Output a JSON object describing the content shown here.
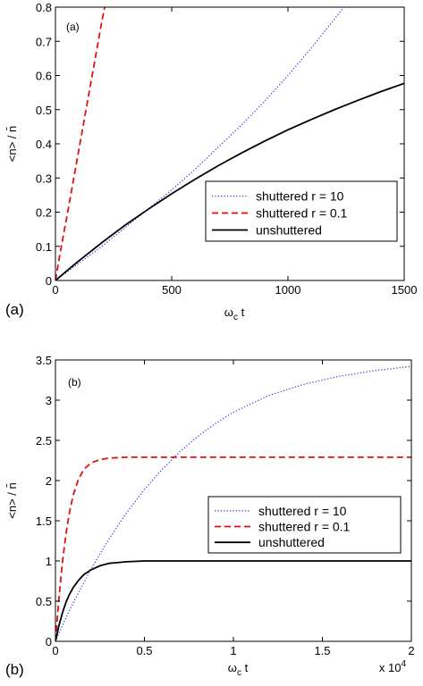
{
  "chart_data": [
    {
      "type": "line",
      "panel_label": "(a)",
      "inner_label": "(a)",
      "xlabel_main": "ω",
      "xlabel_sub": "c",
      "xlabel_tail": " t",
      "ylabel": "<n> / n̄",
      "xlim": [
        0,
        1500
      ],
      "ylim": [
        0,
        0.8
      ],
      "xticks": [
        0,
        500,
        1000,
        1500
      ],
      "xtick_labels": [
        "0",
        "500",
        "1000",
        "1500"
      ],
      "yticks": [
        0,
        0.1,
        0.2,
        0.3,
        0.4,
        0.5,
        0.6,
        0.7,
        0.8
      ],
      "ytick_labels": [
        "0",
        "0.1",
        "0.2",
        "0.3",
        "0.4",
        "0.5",
        "0.6",
        "0.7",
        "0.8"
      ],
      "x_multiplier": "",
      "grid": false,
      "legend_position": "lower-right",
      "series": [
        {
          "name": "shuttered r = 10",
          "color": "#3b3bd6",
          "dash": "dotted",
          "x": [
            0,
            100,
            200,
            300,
            400,
            500,
            600,
            700,
            800,
            900,
            1000,
            1100,
            1200,
            1240
          ],
          "y": [
            0,
            0.05,
            0.1,
            0.155,
            0.21,
            0.265,
            0.325,
            0.39,
            0.455,
            0.525,
            0.6,
            0.68,
            0.765,
            0.8
          ]
        },
        {
          "name": "shuttered r = 0.1",
          "color": "#e01010",
          "dash": "dashed",
          "x": [
            0,
            20,
            50,
            100,
            150,
            200,
            212
          ],
          "y": [
            0,
            0.08,
            0.19,
            0.38,
            0.57,
            0.76,
            0.8
          ]
        },
        {
          "name": "unshuttered",
          "color": "#000000",
          "dash": "solid",
          "x": [
            0,
            50,
            100,
            200,
            300,
            400,
            500,
            600,
            700,
            800,
            900,
            1000,
            1100,
            1200,
            1300,
            1400,
            1500
          ],
          "y": [
            0,
            0.029,
            0.057,
            0.111,
            0.162,
            0.209,
            0.254,
            0.296,
            0.336,
            0.373,
            0.408,
            0.441,
            0.471,
            0.5,
            0.527,
            0.553,
            0.577
          ]
        }
      ]
    },
    {
      "type": "line",
      "panel_label": "(b)",
      "inner_label": "(b)",
      "xlabel_main": "ω",
      "xlabel_sub": "c",
      "xlabel_tail": " t",
      "ylabel": "<n> / n̄",
      "xlim": [
        0,
        2
      ],
      "ylim": [
        0,
        3.5
      ],
      "xticks": [
        0,
        0.5,
        1,
        1.5,
        2
      ],
      "xtick_labels": [
        "0",
        "0.5",
        "1",
        "1.5",
        "2"
      ],
      "yticks": [
        0,
        0.5,
        1,
        1.5,
        2,
        2.5,
        3,
        3.5
      ],
      "ytick_labels": [
        "0",
        "0.5",
        "1",
        "1.5",
        "2",
        "2.5",
        "3",
        "3.5"
      ],
      "x_multiplier": "x 10",
      "x_multiplier_exp": "4",
      "grid": false,
      "legend_position": "right",
      "series": [
        {
          "name": "shuttered r = 10",
          "color": "#3b3bd6",
          "dash": "dotted",
          "x": [
            0,
            0.05,
            0.1,
            0.2,
            0.3,
            0.4,
            0.5,
            0.6,
            0.7,
            0.8,
            0.9,
            1.0,
            1.2,
            1.4,
            1.6,
            1.8,
            2.0
          ],
          "y": [
            0,
            0.25,
            0.48,
            0.9,
            1.27,
            1.6,
            1.89,
            2.14,
            2.36,
            2.55,
            2.71,
            2.85,
            3.06,
            3.2,
            3.3,
            3.37,
            3.42
          ]
        },
        {
          "name": "shuttered r = 0.1",
          "color": "#e01010",
          "dash": "dashed",
          "x": [
            0,
            0.02,
            0.04,
            0.06,
            0.08,
            0.1,
            0.13,
            0.16,
            0.2,
            0.25,
            0.3,
            0.4,
            0.6,
            1.0,
            1.5,
            2.0
          ],
          "y": [
            0,
            0.55,
            1.0,
            1.35,
            1.62,
            1.82,
            2.02,
            2.14,
            2.22,
            2.26,
            2.28,
            2.29,
            2.29,
            2.29,
            2.29,
            2.29
          ]
        },
        {
          "name": "unshuttered",
          "color": "#000000",
          "dash": "solid",
          "x": [
            0,
            0.02,
            0.04,
            0.06,
            0.08,
            0.1,
            0.13,
            0.16,
            0.2,
            0.25,
            0.3,
            0.4,
            0.5,
            0.7,
            1.0,
            1.5,
            2.0
          ],
          "y": [
            0,
            0.2,
            0.36,
            0.49,
            0.59,
            0.67,
            0.76,
            0.83,
            0.89,
            0.94,
            0.97,
            0.99,
            1.0,
            1.0,
            1.0,
            1.0,
            1.0
          ]
        }
      ]
    }
  ]
}
